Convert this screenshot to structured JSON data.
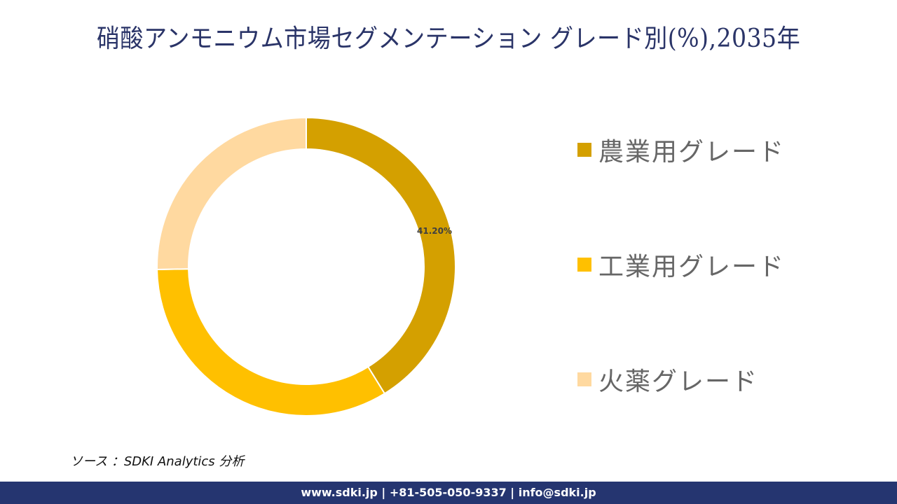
{
  "title": "硝酸アンモニウム市場セグメンテーション グレード別(%),2035年",
  "chart_data": {
    "type": "pie",
    "variant": "donut",
    "title": "硝酸アンモニウム市場セグメンテーション グレード別(%),2035年",
    "categories": [
      "農業用グレード",
      "工業用グレード",
      "火薬グレード"
    ],
    "values": [
      41.2,
      33.5,
      25.3
    ],
    "colors": [
      "#d4a000",
      "#ffc000",
      "#ffd9a0"
    ],
    "data_labels": [
      "41.20%",
      "",
      ""
    ],
    "legend_position": "right",
    "start_angle_deg": 0,
    "direction": "clockwise"
  },
  "legend": {
    "items": [
      {
        "label": "農業用グレード",
        "color": "#d4a000"
      },
      {
        "label": "工業用グレード",
        "color": "#ffc000"
      },
      {
        "label": "火薬グレード",
        "color": "#ffd9a0"
      }
    ]
  },
  "source": "ソース ：SDKI Analytics 分析",
  "footer": "www.sdki.jp | +81-505-050-9337 | info@sdki.jp"
}
